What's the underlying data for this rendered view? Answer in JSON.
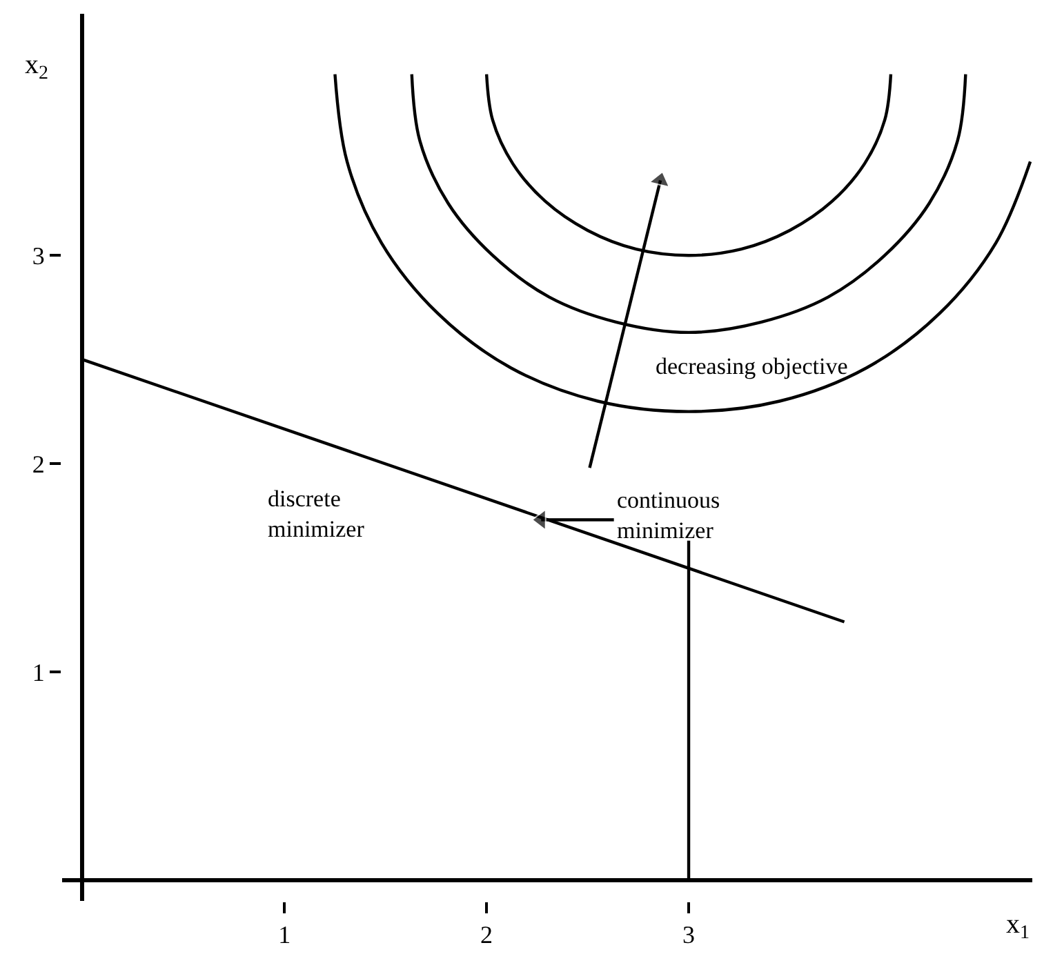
{
  "chart_data": {
    "type": "line",
    "xlabel": "x$_{1}$",
    "ylabel": "x$_{2}$",
    "xlim": [
      -0.1,
      4.7
    ],
    "ylim": [
      -0.1,
      4.16
    ],
    "xticks": [
      1,
      2,
      3
    ],
    "yticks": [
      1,
      2,
      3
    ],
    "line_style": "solid",
    "series": [
      {
        "color": "#000000",
        "x": [
          0,
          3.77
        ],
        "values": [
          2.5,
          1.24
        ]
      },
      {
        "color": "#000000",
        "x": [
          3,
          3
        ],
        "values": [
          0,
          1.63
        ]
      },
      {
        "color": "#000000",
        "x": [
          2.0,
          2.03,
          2.13,
          2.29,
          2.5,
          2.74,
          3.0,
          3.26,
          3.5,
          3.71,
          3.87,
          3.97,
          4.0
        ],
        "values": [
          3.87,
          3.65,
          3.44,
          3.26,
          3.12,
          3.03,
          3.0,
          3.03,
          3.12,
          3.26,
          3.44,
          3.65,
          3.87
        ]
      },
      {
        "color": "#000000",
        "x": [
          1.63,
          1.67,
          1.81,
          2.03,
          2.31,
          2.64,
          3.0,
          3.36,
          3.69,
          3.97,
          4.19,
          4.33,
          4.37
        ],
        "values": [
          3.87,
          3.55,
          3.25,
          3.0,
          2.8,
          2.68,
          2.63,
          2.68,
          2.8,
          3.0,
          3.25,
          3.55,
          3.87
        ]
      },
      {
        "color": "#000000",
        "x": [
          1.25,
          1.31,
          1.48,
          1.76,
          2.12,
          2.55,
          3.0,
          3.45,
          3.88,
          4.24,
          4.52,
          4.69
        ],
        "values": [
          3.87,
          3.45,
          3.06,
          2.72,
          2.46,
          2.3,
          2.25,
          2.3,
          2.46,
          2.72,
          3.06,
          3.45
        ]
      },
      {
        "color": "#000000",
        "marker": "triangle",
        "x": [
          2.51,
          2.86
        ],
        "values": [
          1.98,
          3.36
        ]
      },
      {
        "color": "#000000",
        "marker": "triangle",
        "x": [
          2.63,
          2.27
        ],
        "values": [
          1.73,
          1.73
        ]
      }
    ],
    "annotations": [
      "decreasing objective",
      "discrete\nminimizer",
      {
        "text": "continuous\nminimizer",
        "x": 2.63,
        "y": 1.75
      }
    ]
  }
}
